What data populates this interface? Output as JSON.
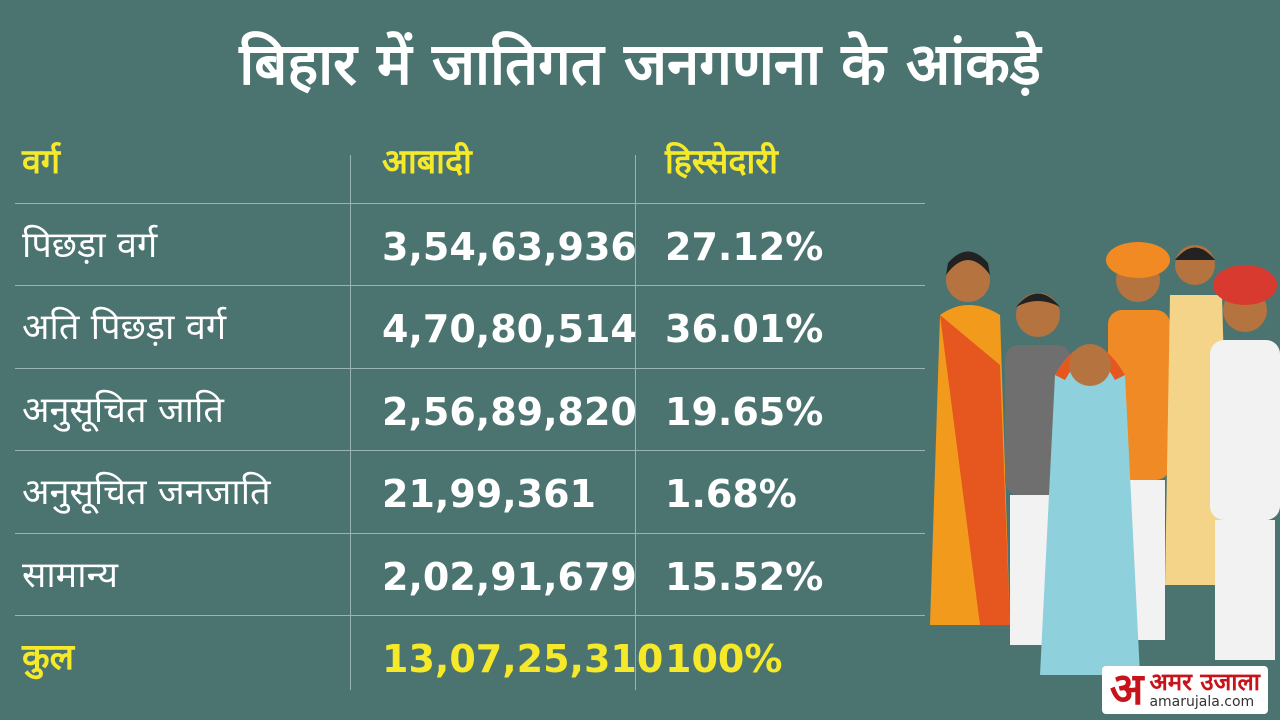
{
  "title": "बिहार में जातिगत जनगणना के आंकड़े",
  "table": {
    "header": [
      "वर्ग",
      "आबादी",
      "हिस्सेदारी"
    ],
    "rows": [
      [
        "पिछड़ा वर्ग",
        "3,54,63,936",
        "27.12%"
      ],
      [
        "अति पिछड़ा वर्ग",
        "4,70,80,514",
        "36.01%"
      ],
      [
        "अनुसूचित जाति",
        "2,56,89,820",
        "19.65%"
      ],
      [
        "अनुसूचित जनजाति",
        "21,99,361",
        "1.68%"
      ],
      [
        "सामान्य",
        "2,02,91,679",
        "15.52%"
      ]
    ],
    "total": [
      "कुल",
      "13,07,25,310",
      "100%"
    ]
  },
  "logo": {
    "mark": "अ",
    "name": "अमर उजाला",
    "site": "amarujala.com"
  }
}
